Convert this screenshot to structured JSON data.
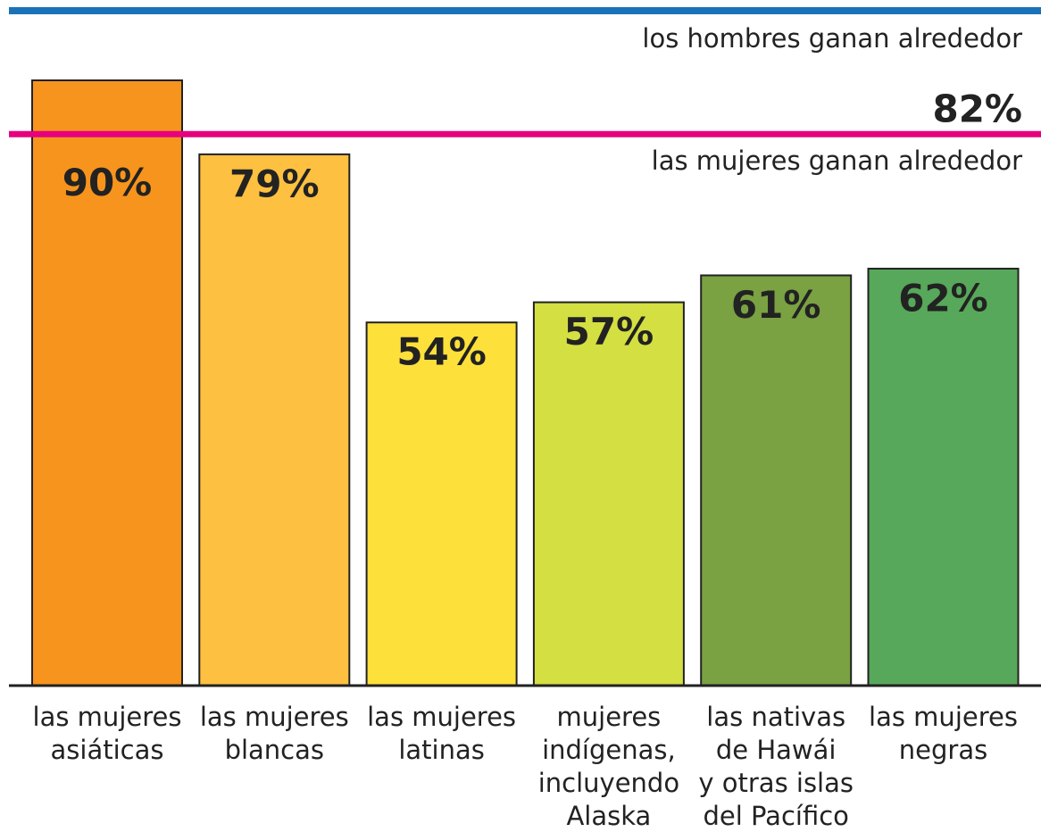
{
  "chart_data": {
    "type": "bar",
    "categories": [
      [
        "las mujeres",
        "asiáticas"
      ],
      [
        "las mujeres",
        "blancas"
      ],
      [
        "las mujeres",
        "latinas"
      ],
      [
        "mujeres",
        "indígenas,",
        "incluyendo",
        "Alaska"
      ],
      [
        "las nativas",
        "de Hawái",
        "y otras islas",
        "del Pacífico"
      ],
      [
        "las mujeres",
        "negras"
      ]
    ],
    "values": [
      90,
      79,
      54,
      57,
      61,
      62
    ],
    "value_labels": [
      "90%",
      "79%",
      "54%",
      "57%",
      "61%",
      "62%"
    ],
    "colors": [
      "#f7941d",
      "#fdc040",
      "#fde03a",
      "#d4df42",
      "#7aa142",
      "#57a85a"
    ],
    "reference_line": {
      "value": 82,
      "label": "82%",
      "color": "#e6007e",
      "text_above": "los hombres ganan alrededor",
      "text_below": "las mujeres ganan alrededor"
    }
  }
}
